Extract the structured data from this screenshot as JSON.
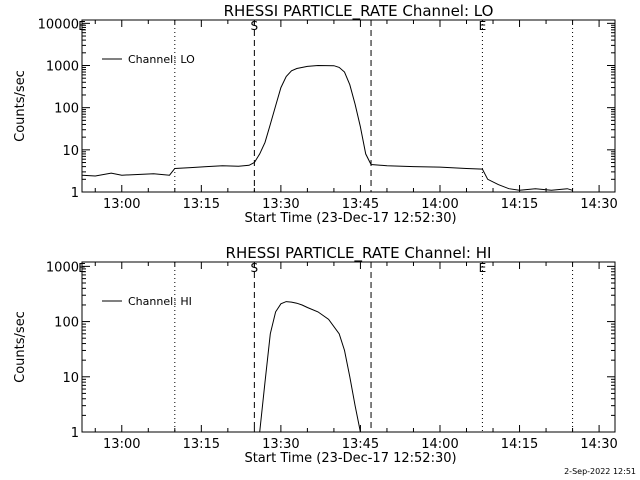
{
  "footer": {
    "timestamp": "2-Sep-2022 12:51"
  },
  "colors": {
    "foreground": "#000000",
    "background": "#ffffff"
  },
  "chart_data": [
    {
      "type": "line",
      "title": "RHESSI PARTICLE_RATE Channel: LO",
      "xlabel": "Start Time (23-Dec-17 12:52:30)",
      "ylabel": "Counts/sec",
      "yscale": "log",
      "ylim": [
        1,
        12000
      ],
      "xlim": [
        "12:52:30",
        "14:33:00"
      ],
      "x_ticks": [
        "13:00",
        "13:15",
        "13:30",
        "13:45",
        "14:00",
        "14:15",
        "14:30"
      ],
      "y_ticks": [
        "1",
        "10",
        "100",
        "1000",
        "10000"
      ],
      "legend": {
        "position": "top-left",
        "entries": [
          "Channel: LO"
        ]
      },
      "markers": [
        {
          "time": "12:52:30",
          "label": "E",
          "style": "dotted"
        },
        {
          "time": "13:10:00",
          "label": "",
          "style": "dotted"
        },
        {
          "time": "13:25:00",
          "label": "S",
          "style": "dashed"
        },
        {
          "time": "13:47:00",
          "label": "",
          "style": "dashed"
        },
        {
          "time": "14:08:00",
          "label": "E",
          "style": "dotted"
        },
        {
          "time": "14:25:00",
          "label": "",
          "style": "dotted"
        }
      ],
      "series": [
        {
          "name": "Channel: LO",
          "x": [
            "12:52:30",
            "12:55",
            "12:58",
            "13:00",
            "13:03",
            "13:06",
            "13:09",
            "13:10",
            "13:13",
            "13:16",
            "13:19",
            "13:22",
            "13:24",
            "13:25",
            "13:26",
            "13:27",
            "13:28",
            "13:29",
            "13:30",
            "13:31",
            "13:32",
            "13:33",
            "13:35",
            "13:37",
            "13:40",
            "13:41",
            "13:42",
            "13:43",
            "13:44",
            "13:45",
            "13:46",
            "13:47",
            "13:50",
            "13:55",
            "14:00",
            "14:05",
            "14:08",
            "14:09",
            "14:11",
            "14:13",
            "14:15",
            "14:18",
            "14:21",
            "14:24",
            "14:25"
          ],
          "y": [
            2.5,
            2.4,
            2.8,
            2.5,
            2.6,
            2.7,
            2.5,
            3.6,
            3.8,
            4.0,
            4.2,
            4.1,
            4.3,
            5.0,
            8,
            15,
            40,
            110,
            300,
            550,
            750,
            850,
            950,
            1000,
            990,
            900,
            700,
            350,
            120,
            35,
            8,
            4.5,
            4.2,
            4.0,
            3.9,
            3.6,
            3.5,
            2.0,
            1.5,
            1.2,
            1.1,
            1.2,
            1.1,
            1.2,
            1.1
          ]
        }
      ]
    },
    {
      "type": "line",
      "title": "RHESSI PARTICLE_RATE Channel: HI",
      "xlabel": "Start Time (23-Dec-17 12:52:30)",
      "ylabel": "Counts/sec",
      "yscale": "log",
      "ylim": [
        1,
        1200
      ],
      "xlim": [
        "12:52:30",
        "14:33:00"
      ],
      "x_ticks": [
        "13:00",
        "13:15",
        "13:30",
        "13:45",
        "14:00",
        "14:15",
        "14:30"
      ],
      "y_ticks": [
        "1",
        "10",
        "100",
        "1000"
      ],
      "legend": {
        "position": "top-left",
        "entries": [
          "Channel: HI"
        ]
      },
      "markers": [
        {
          "time": "12:52:30",
          "label": "E",
          "style": "dotted"
        },
        {
          "time": "13:10:00",
          "label": "",
          "style": "dotted"
        },
        {
          "time": "13:25:00",
          "label": "S",
          "style": "dashed"
        },
        {
          "time": "13:47:00",
          "label": "",
          "style": "dashed"
        },
        {
          "time": "14:08:00",
          "label": "E",
          "style": "dotted"
        },
        {
          "time": "14:25:00",
          "label": "",
          "style": "dotted"
        }
      ],
      "series": [
        {
          "name": "Channel: HI",
          "x": [
            "13:26",
            "13:27",
            "13:28",
            "13:29",
            "13:30",
            "13:31",
            "13:32",
            "13:33",
            "13:34",
            "13:35",
            "13:37",
            "13:39",
            "13:41",
            "13:42",
            "13:43",
            "13:44",
            "13:45"
          ],
          "y": [
            1,
            8,
            60,
            150,
            210,
            230,
            225,
            215,
            200,
            180,
            150,
            110,
            60,
            30,
            10,
            3,
            1
          ]
        }
      ]
    }
  ]
}
